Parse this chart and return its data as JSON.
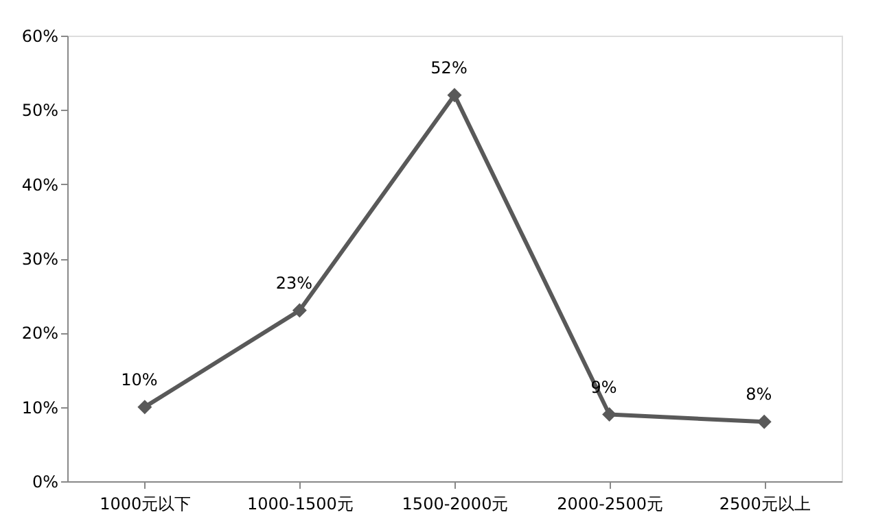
{
  "chart_data": {
    "type": "line",
    "categories": [
      "1000元以下",
      "1000-1500元",
      "1500-2000元",
      "2000-2500元",
      "2500元以上"
    ],
    "series": [
      {
        "color": "#595959",
        "values": [
          10,
          23,
          52,
          9,
          8
        ],
        "value_labels": [
          "10%",
          "23%",
          "52%",
          "9%",
          "8%"
        ]
      }
    ],
    "ylim": [
      0,
      60
    ],
    "yticks": [
      {
        "value": 0,
        "label": "0%"
      },
      {
        "value": 10,
        "label": "10%"
      },
      {
        "value": 20,
        "label": "20%"
      },
      {
        "value": 30,
        "label": "30%"
      },
      {
        "value": 40,
        "label": "40%"
      },
      {
        "value": 50,
        "label": "50%"
      },
      {
        "value": 60,
        "label": "60%"
      }
    ],
    "grid": false,
    "marker": "diamond",
    "line_style": "solid"
  }
}
